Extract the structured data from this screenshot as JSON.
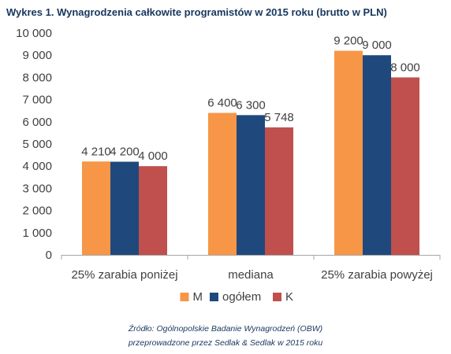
{
  "chart_data": {
    "type": "bar",
    "title": "Wykres 1. Wynagrodzenia całkowite programistów w 2015 roku (brutto w PLN)",
    "categories": [
      "25% zarabia poniżej",
      "mediana",
      "25% zarabia powyżej"
    ],
    "series": [
      {
        "name": "M",
        "color": "#f79646",
        "values": [
          4210,
          6400,
          9200
        ],
        "labels": [
          "4 210",
          "6 400",
          "9 200"
        ]
      },
      {
        "name": "ogółem",
        "color": "#1f497d",
        "values": [
          4200,
          6300,
          9000
        ],
        "labels": [
          "4 200",
          "6 300",
          "9 000"
        ]
      },
      {
        "name": "K",
        "color": "#c0504d",
        "values": [
          4000,
          5748,
          8000
        ],
        "labels": [
          "4 000",
          "5 748",
          "8 000"
        ]
      }
    ],
    "ylim": [
      0,
      10000
    ],
    "yticks": [
      0,
      1000,
      2000,
      3000,
      4000,
      5000,
      6000,
      7000,
      8000,
      9000,
      10000
    ],
    "ytick_labels": [
      "0",
      "1 000",
      "2 000",
      "3 000",
      "4 000",
      "5 000",
      "6 000",
      "7 000",
      "8 000",
      "9 000",
      "10 000"
    ],
    "grid": false,
    "legend_position": "bottom",
    "xlabel": "",
    "ylabel": ""
  },
  "source": {
    "line1": "Źródło: Ogólnopolskie Badanie Wynagrodzeń (OBW)",
    "line2": "przeprowadzone  przez Sedlak & Sedlak w 2015 roku"
  }
}
